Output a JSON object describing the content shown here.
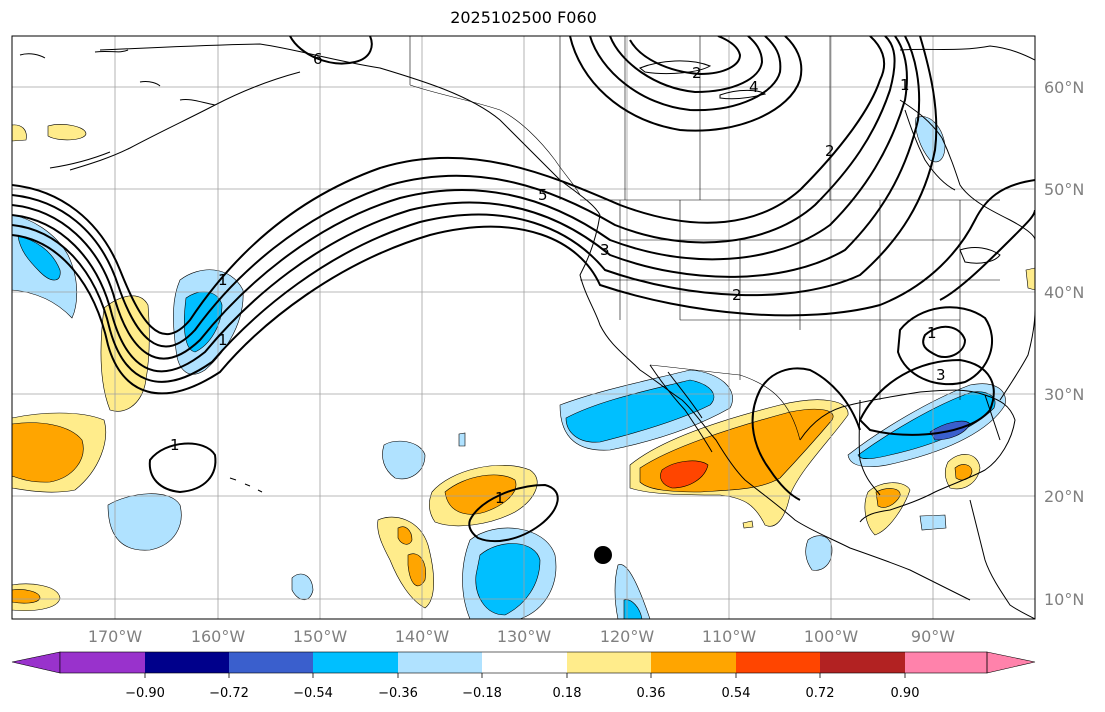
{
  "title": "2025102500 F060",
  "lon_labels": [
    "170°W",
    "160°W",
    "150°W",
    "140°W",
    "130°W",
    "120°W",
    "110°W",
    "100°W",
    "90°W"
  ],
  "lat_labels": [
    "60°N",
    "50°N",
    "40°N",
    "30°N",
    "20°N",
    "10°N"
  ],
  "colorbar": {
    "colors": [
      "#9932cc",
      "#00008b",
      "#3a5fcd",
      "#00bfff",
      "#b0e2ff",
      "#ffffff",
      "#ffec8b",
      "#ffa500",
      "#ff4500",
      "#b22222",
      "#ff82ab"
    ],
    "tick_labels": [
      "−0.90",
      "−0.72",
      "−0.54",
      "−0.36",
      "−0.18",
      "0.18",
      "0.36",
      "0.54",
      "0.72",
      "0.90"
    ]
  },
  "contour_labels": [
    "6",
    "1",
    "5",
    "3",
    "2",
    "1",
    "2",
    "4",
    "1",
    "2",
    "3",
    "1",
    "1",
    "1"
  ],
  "colors": {
    "blue_light": "#b0e2ff",
    "blue_mid": "#00bfff",
    "blue_dark": "#3a5fcd",
    "yellow": "#ffec8b",
    "orange": "#ffa500",
    "red": "#ff4500"
  }
}
